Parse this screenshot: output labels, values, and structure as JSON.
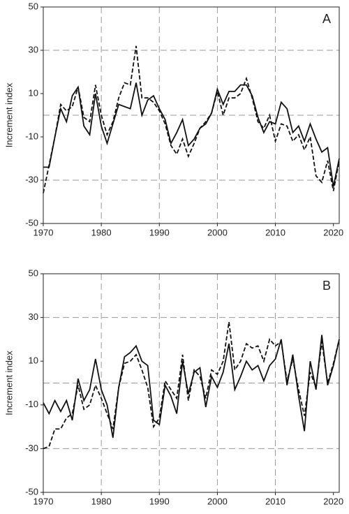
{
  "chart_data": [
    {
      "type": "line",
      "label": "A",
      "ylabel": "Increment index",
      "x": [
        1970,
        1971,
        1972,
        1973,
        1974,
        1975,
        1976,
        1977,
        1978,
        1979,
        1980,
        1981,
        1982,
        1983,
        1984,
        1985,
        1986,
        1987,
        1988,
        1989,
        1990,
        1991,
        1992,
        1993,
        1994,
        1995,
        1996,
        1997,
        1998,
        1999,
        2000,
        2001,
        2002,
        2003,
        2004,
        2005,
        2006,
        2007,
        2008,
        2009,
        2010,
        2011,
        2012,
        2013,
        2014,
        2015,
        2016,
        2017,
        2018,
        2019,
        2020,
        2021
      ],
      "series": [
        {
          "style": "solid",
          "color": "#111111",
          "values": [
            -24,
            -24,
            -10,
            3,
            -3,
            9,
            13,
            -5,
            -9,
            10,
            -5,
            -13,
            -4,
            5,
            4,
            3,
            15,
            0,
            7,
            9,
            3,
            -2,
            -13,
            -8,
            -2,
            -14,
            -11,
            -6,
            -4,
            1,
            12,
            5,
            11,
            11,
            14,
            14,
            9,
            -1,
            -8,
            -3,
            -4,
            6,
            3,
            -8,
            -5,
            -12,
            -4,
            -11,
            -17,
            -15,
            -33,
            -20
          ]
        },
        {
          "style": "dashed",
          "color": "#111111",
          "values": [
            -36,
            -23,
            -10,
            5,
            2,
            4,
            13,
            -1,
            -3,
            14,
            0,
            -9,
            -3,
            8,
            15,
            14,
            32,
            8,
            8,
            6,
            2,
            -4,
            -14,
            -18,
            -11,
            -19,
            -13,
            -6,
            -3,
            1,
            11,
            0,
            8,
            8,
            10,
            17,
            8,
            -3,
            -6,
            0,
            -12,
            -4,
            -5,
            -12,
            -9,
            -16,
            -10,
            -28,
            -31,
            -21,
            -35,
            -21
          ]
        }
      ],
      "xlim": [
        1970,
        2021
      ],
      "xticks": [
        1970,
        1980,
        1990,
        2000,
        2010,
        2020
      ],
      "ylim": [
        -50,
        50
      ],
      "yticks": [
        -50,
        -30,
        -10,
        10,
        30,
        50
      ],
      "hgrid": [
        30,
        0,
        -30
      ],
      "vgrid": [
        1980,
        1990,
        2000,
        2010
      ]
    },
    {
      "type": "line",
      "label": "B",
      "ylabel": "Increment index",
      "x": [
        1970,
        1971,
        1972,
        1973,
        1974,
        1975,
        1976,
        1977,
        1978,
        1979,
        1980,
        1981,
        1982,
        1983,
        1984,
        1985,
        1986,
        1987,
        1988,
        1989,
        1990,
        1991,
        1992,
        1993,
        1994,
        1995,
        1996,
        1997,
        1998,
        1999,
        2000,
        2001,
        2002,
        2003,
        2004,
        2005,
        2006,
        2007,
        2008,
        2009,
        2010,
        2011,
        2012,
        2013,
        2014,
        2015,
        2016,
        2017,
        2018,
        2019,
        2020,
        2021
      ],
      "series": [
        {
          "style": "solid",
          "color": "#111111",
          "values": [
            -9,
            -14,
            -8,
            -13,
            -8,
            -17,
            2,
            -8,
            -3,
            11,
            -3,
            -10,
            -25,
            -2,
            12,
            14,
            17,
            10,
            8,
            -17,
            -19,
            -1,
            -6,
            -14,
            10,
            -5,
            5,
            7,
            -11,
            3,
            -2,
            5,
            18,
            -3,
            3,
            10,
            6,
            8,
            1,
            8,
            11,
            20,
            -1,
            13,
            -6,
            -22,
            10,
            -3,
            22,
            -1,
            8,
            20
          ]
        },
        {
          "style": "dashed",
          "color": "#111111",
          "values": [
            -30,
            -29,
            -21,
            -21,
            -16,
            -14,
            -1,
            -12,
            -10,
            -1,
            -7,
            -14,
            -21,
            -2,
            9,
            10,
            13,
            6,
            -2,
            -20,
            -16,
            1,
            -3,
            -7,
            13,
            -8,
            6,
            3,
            -7,
            6,
            4,
            10,
            28,
            6,
            10,
            18,
            16,
            17,
            10,
            20,
            17,
            19,
            1,
            11,
            -3,
            -15,
            5,
            -2,
            19,
            0,
            9,
            20
          ]
        }
      ],
      "xlim": [
        1970,
        2021
      ],
      "xticks": [
        1970,
        1980,
        1990,
        2000,
        2010,
        2020
      ],
      "ylim": [
        -50,
        50
      ],
      "yticks": [
        -50,
        -30,
        -10,
        10,
        30,
        50
      ],
      "hgrid": [
        30,
        0,
        -30
      ],
      "vgrid": [
        1980,
        1990,
        2000,
        2010
      ]
    }
  ]
}
